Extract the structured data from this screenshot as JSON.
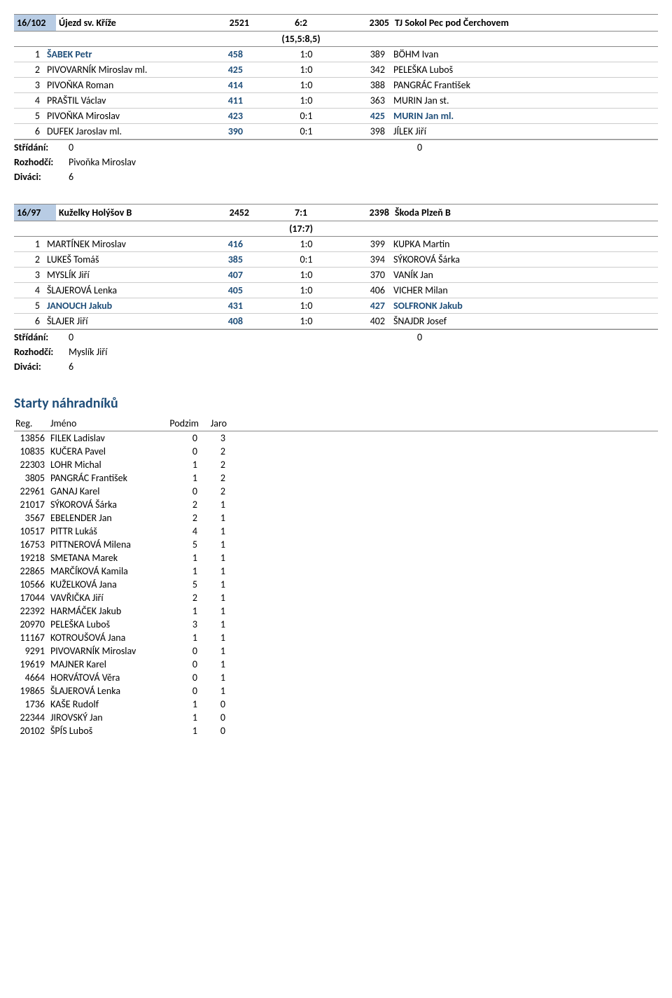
{
  "matches": [
    {
      "code": "16/102",
      "team1": "Újezd sv. Kříže",
      "pts1": "2521",
      "score": "6:2",
      "pts2": "2305",
      "team2": "TJ Sokol Pec pod Čerchovem",
      "sub_score": "(15,5:8,5)",
      "players": [
        {
          "idx": "1",
          "n1": "ŠABEK Petr",
          "s1": "458",
          "r": "1:0",
          "s2": "389",
          "n2": "BÖHM Ivan",
          "hl1": true,
          "hl2": false
        },
        {
          "idx": "2",
          "n1": "PIVOVARNÍK Miroslav ml.",
          "s1": "425",
          "r": "1:0",
          "s2": "342",
          "n2": "PELEŠKA Luboš",
          "hl1": false,
          "hl2": false
        },
        {
          "idx": "3",
          "n1": "PIVOŇKA Roman",
          "s1": "414",
          "r": "1:0",
          "s2": "388",
          "n2": "PANGRÁC František",
          "hl1": false,
          "hl2": false
        },
        {
          "idx": "4",
          "n1": "PRAŠTIL Václav",
          "s1": "411",
          "r": "1:0",
          "s2": "363",
          "n2": "MURIN Jan st.",
          "hl1": false,
          "hl2": false
        },
        {
          "idx": "5",
          "n1": "PIVOŇKA Miroslav",
          "s1": "423",
          "r": "0:1",
          "s2": "425",
          "n2": "MURIN Jan ml.",
          "hl1": false,
          "hl2": true
        },
        {
          "idx": "6",
          "n1": "DUFEK Jaroslav ml.",
          "s1": "390",
          "r": "0:1",
          "s2": "398",
          "n2": "JÍLEK Jiří",
          "hl1": false,
          "hl2": false
        }
      ],
      "stridani": {
        "label": "Střídání:",
        "v1": "0",
        "v2": "0"
      },
      "rozhodci": {
        "label": "Rozhodčí:",
        "val": "Pivoňka Miroslav"
      },
      "divaci": {
        "label": "Diváci:",
        "val": "6"
      }
    },
    {
      "code": "16/97",
      "team1": "Kuželky Holýšov B",
      "pts1": "2452",
      "score": "7:1",
      "pts2": "2398",
      "team2": "Škoda Plzeň B",
      "sub_score": "(17:7)",
      "players": [
        {
          "idx": "1",
          "n1": "MARTÍNEK Miroslav",
          "s1": "416",
          "r": "1:0",
          "s2": "399",
          "n2": "KUPKA Martin",
          "hl1": false,
          "hl2": false
        },
        {
          "idx": "2",
          "n1": "LUKEŠ Tomáš",
          "s1": "385",
          "r": "0:1",
          "s2": "394",
          "n2": "SÝKOROVÁ Šárka",
          "hl1": false,
          "hl2": false
        },
        {
          "idx": "3",
          "n1": "MYSLÍK Jiří",
          "s1": "407",
          "r": "1:0",
          "s2": "370",
          "n2": "VANÍK Jan",
          "hl1": false,
          "hl2": false
        },
        {
          "idx": "4",
          "n1": "ŠLAJEROVÁ Lenka",
          "s1": "405",
          "r": "1:0",
          "s2": "406",
          "n2": "VICHER Milan",
          "hl1": false,
          "hl2": false
        },
        {
          "idx": "5",
          "n1": "JANOUCH Jakub",
          "s1": "431",
          "r": "1:0",
          "s2": "427",
          "n2": "SOLFRONK Jakub",
          "hl1": true,
          "hl2": true
        },
        {
          "idx": "6",
          "n1": "ŠLAJER Jiří",
          "s1": "408",
          "r": "1:0",
          "s2": "402",
          "n2": "ŠNAJDR Josef",
          "hl1": false,
          "hl2": false
        }
      ],
      "stridani": {
        "label": "Střídání:",
        "v1": "0",
        "v2": "0"
      },
      "rozhodci": {
        "label": "Rozhodčí:",
        "val": "Myslík Jiří"
      },
      "divaci": {
        "label": "Diváci:",
        "val": "6"
      }
    }
  ],
  "subs_section": {
    "title": "Starty náhradníků",
    "header": {
      "reg": "Reg.",
      "name": "Jméno",
      "podzim": "Podzim",
      "jaro": "Jaro"
    },
    "rows": [
      {
        "reg": "13856",
        "name": "FILEK Ladislav",
        "p": "0",
        "j": "3"
      },
      {
        "reg": "10835",
        "name": "KUČERA Pavel",
        "p": "0",
        "j": "2"
      },
      {
        "reg": "22303",
        "name": "LOHR Michal",
        "p": "1",
        "j": "2"
      },
      {
        "reg": "3805",
        "name": "PANGRÁC František",
        "p": "1",
        "j": "2"
      },
      {
        "reg": "22961",
        "name": "GANAJ Karel",
        "p": "0",
        "j": "2"
      },
      {
        "reg": "21017",
        "name": "SÝKOROVÁ Šárka",
        "p": "2",
        "j": "1"
      },
      {
        "reg": "3567",
        "name": "EBELENDER Jan",
        "p": "2",
        "j": "1"
      },
      {
        "reg": "10517",
        "name": "PITTR Lukáš",
        "p": "4",
        "j": "1"
      },
      {
        "reg": "16753",
        "name": "PITTNEROVÁ Milena",
        "p": "5",
        "j": "1"
      },
      {
        "reg": "19218",
        "name": "SMETANA Marek",
        "p": "1",
        "j": "1"
      },
      {
        "reg": "22865",
        "name": "MARČÍKOVÁ  Kamila",
        "p": "1",
        "j": "1"
      },
      {
        "reg": "10566",
        "name": "KUŽELKOVÁ Jana",
        "p": "5",
        "j": "1"
      },
      {
        "reg": "17044",
        "name": "VAVŘIČKA Jiří",
        "p": "2",
        "j": "1"
      },
      {
        "reg": "22392",
        "name": "HARMÁČEK Jakub",
        "p": "1",
        "j": "1"
      },
      {
        "reg": "20970",
        "name": "PELEŠKA Luboš",
        "p": "3",
        "j": "1"
      },
      {
        "reg": "11167",
        "name": "KOTROUŠOVÁ Jana",
        "p": "1",
        "j": "1"
      },
      {
        "reg": "9291",
        "name": "PIVOVARNÍK Miroslav",
        "p": "0",
        "j": "1"
      },
      {
        "reg": "19619",
        "name": "MAJNER Karel",
        "p": "0",
        "j": "1"
      },
      {
        "reg": "4664",
        "name": "HORVÁTOVÁ Věra",
        "p": "0",
        "j": "1"
      },
      {
        "reg": "19865",
        "name": "ŠLAJEROVÁ Lenka",
        "p": "0",
        "j": "1"
      },
      {
        "reg": "1736",
        "name": "KAŠE Rudolf",
        "p": "1",
        "j": "0"
      },
      {
        "reg": "22344",
        "name": "JIROVSKÝ Jan",
        "p": "1",
        "j": "0"
      },
      {
        "reg": "20102",
        "name": "ŠPÍS Luboš",
        "p": "1",
        "j": "0"
      }
    ]
  }
}
